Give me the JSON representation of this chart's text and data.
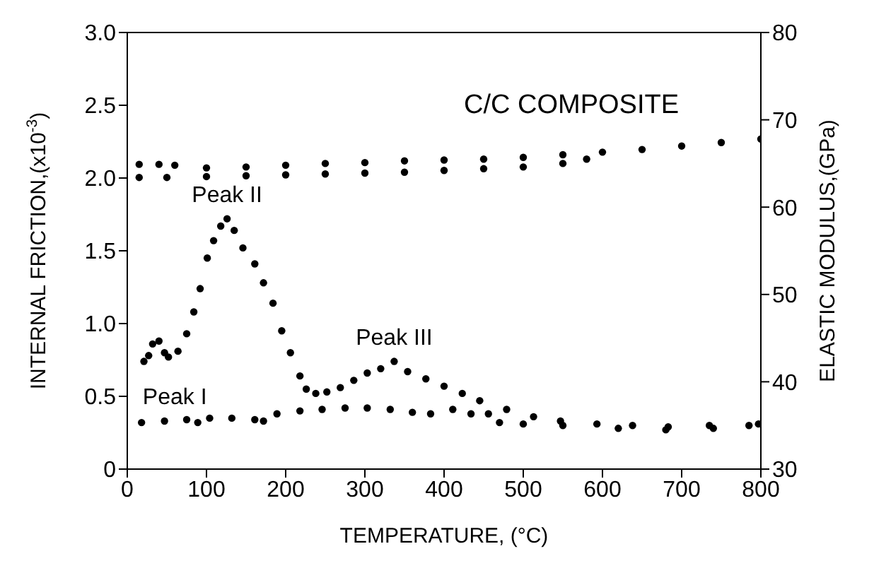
{
  "chart_data": {
    "type": "scatter",
    "xlabel": "TEMPERATURE, (°C)",
    "ylabel": "INTERNAL FRICTION,(x10$^{-3}$)",
    "y2label": "ELASTIC MODULUS,(GPa)",
    "annotations": [
      "C/C COMPOSITE",
      {
        "text": "Peak I",
        "x": 60,
        "y": 0.33
      },
      {
        "text": "Peak II",
        "x": 126,
        "y": 1.72
      },
      {
        "text": "Peak III",
        "x": 337,
        "y": 0.74
      }
    ],
    "xlim": [
      0,
      800
    ],
    "xticks": [
      0,
      100,
      200,
      300,
      400,
      500,
      600,
      700,
      800
    ],
    "ylim": [
      0,
      3
    ],
    "yticks": [
      0,
      {
        "value": 0.5,
        "label": "0.5"
      },
      {
        "value": 1,
        "label": "1.0"
      },
      {
        "value": 1.5,
        "label": "1.5"
      },
      {
        "value": 2,
        "label": "2.0"
      },
      {
        "value": 2.5,
        "label": "2.5"
      },
      {
        "value": 3,
        "label": "3.0"
      }
    ],
    "y2lim": [
      30,
      80
    ],
    "y2ticks": [
      30,
      40,
      50,
      60,
      70,
      80
    ],
    "marker": "circle",
    "grid": false,
    "legend": false,
    "series": [
      {
        "color": "#000000",
        "x": [
          21,
          27,
          32,
          40,
          47,
          52,
          64,
          75,
          84,
          92,
          101,
          109,
          118,
          126,
          135,
          146,
          161,
          172,
          184,
          195,
          206,
          218,
          226,
          238,
          252,
          269,
          286,
          303,
          320,
          337,
          354,
          377,
          400,
          423,
          445,
          479,
          513,
          547,
          593,
          638,
          683,
          735,
          797
        ],
        "values": [
          0.74,
          0.78,
          0.86,
          0.88,
          0.8,
          0.77,
          0.81,
          0.93,
          1.08,
          1.24,
          1.45,
          1.57,
          1.67,
          1.72,
          1.64,
          1.52,
          1.41,
          1.28,
          1.14,
          0.95,
          0.8,
          0.64,
          0.55,
          0.52,
          0.53,
          0.56,
          0.61,
          0.66,
          0.69,
          0.74,
          0.67,
          0.62,
          0.57,
          0.52,
          0.47,
          0.41,
          0.36,
          0.33,
          0.31,
          0.3,
          0.29,
          0.3,
          0.31
        ]
      },
      {
        "color": "#000000",
        "x": [
          18,
          47,
          75,
          89,
          104,
          132,
          161,
          172,
          189,
          218,
          246,
          275,
          303,
          332,
          360,
          383,
          411,
          434,
          456,
          470,
          500,
          550,
          620,
          680,
          740,
          785
        ],
        "values": [
          0.32,
          0.33,
          0.34,
          0.32,
          0.35,
          0.35,
          0.34,
          0.33,
          0.38,
          0.4,
          0.41,
          0.42,
          0.42,
          0.41,
          0.39,
          0.38,
          0.41,
          0.38,
          0.38,
          0.32,
          0.31,
          0.3,
          0.28,
          0.27,
          0.28,
          0.3
        ]
      },
      {
        "color": "#000000",
        "axis": "y2",
        "x": [
          15,
          40,
          60,
          100,
          150,
          200,
          250,
          300,
          350,
          400,
          450,
          500,
          550,
          600,
          650,
          700,
          750,
          800
        ],
        "values": [
          64.9,
          64.9,
          64.8,
          64.5,
          64.6,
          64.8,
          65.0,
          65.1,
          65.3,
          65.4,
          65.5,
          65.7,
          66.0,
          66.3,
          66.6,
          67.0,
          67.4,
          67.8
        ]
      },
      {
        "color": "#000000",
        "axis": "y2",
        "x": [
          15,
          50,
          100,
          150,
          200,
          250,
          300,
          350,
          400,
          450,
          500,
          550,
          580
        ],
        "values": [
          63.4,
          63.4,
          63.5,
          63.6,
          63.7,
          63.8,
          63.9,
          64.0,
          64.2,
          64.4,
          64.6,
          65.0,
          65.5
        ]
      }
    ]
  }
}
